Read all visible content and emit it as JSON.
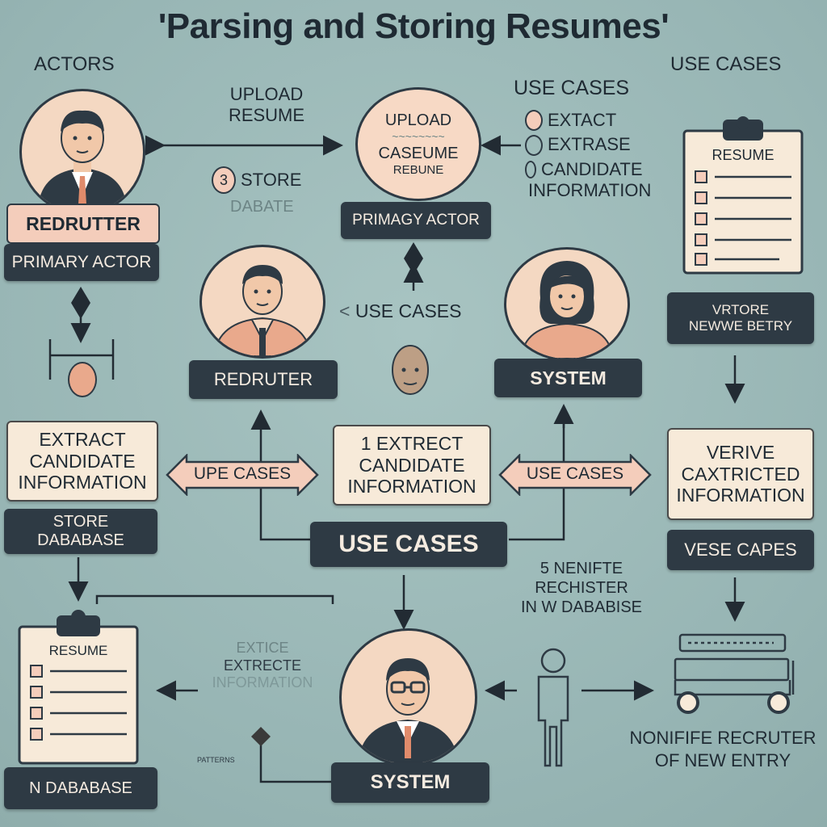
{
  "title": "'Parsing and Storing Resumes'",
  "headers": {
    "actors": "ACTORS",
    "use_cases_top": "USE CASES"
  },
  "top_center": {
    "upload_line1": "UPLOAD",
    "upload_line2": "RESUME",
    "store_number": "3",
    "store_text": "STORE",
    "store_sub": "DABATE",
    "circle_lines": [
      "UPLOAD",
      "CASEUME",
      "REBUNE"
    ],
    "primary_actor_pill": "PRIMAGY ACTOR"
  },
  "top_right_list": {
    "title": "USE CASES",
    "items": [
      "EXTACT",
      "EXTRASE",
      "CANDIDATE"
    ],
    "item_extra": "INFORMATION"
  },
  "left_actor": {
    "name": "REDRUTTER",
    "role": "PRIMARY ACTOR"
  },
  "center_actor": {
    "name": "REDRUTER",
    "use_cases": "USE CASES"
  },
  "system_actor": {
    "name": "SYSTEM"
  },
  "right_clipboard": {
    "title": "RESUME"
  },
  "right_pill": {
    "line1": "VRTORE",
    "line2": "NEWWE BETRY"
  },
  "middle_row": {
    "left_box": [
      "EXTRACT",
      "CANDIDATE",
      "INFORMATION"
    ],
    "left_arrow": "UPE CASES",
    "center_box": [
      "1 EXTRECT",
      "CANDIDATE",
      "INFORMATION"
    ],
    "right_arrow": "USE CASES",
    "right_box": [
      "VERIVE",
      "CAXTRICTED",
      "INFORMATION"
    ],
    "store_pill": [
      "STORE",
      "DABABASE"
    ],
    "use_cases_pill": "USE CASES",
    "right_pill": "VESE CAPES"
  },
  "lower": {
    "register": [
      "5 NENIFTE",
      "RECHISTER",
      "IN W DABABISE"
    ],
    "faded_text": [
      "EXTICE",
      "EXTRECTE",
      "INFORMATION"
    ],
    "small_text": "PATTERNS",
    "bottom_left_clipboard": "RESUME",
    "bottom_left_pill": "N DABABASE",
    "bottom_system": "SYSTEM",
    "bottom_right": [
      "NONIFIFE RECRUTER",
      "OF NEW ENTRY"
    ]
  },
  "colors": {
    "background": "#9fbcbb",
    "dark": "#2e3a44",
    "peach": "#f4cdbb",
    "cream": "#f7ead9",
    "skin": "#f4d8c2"
  }
}
